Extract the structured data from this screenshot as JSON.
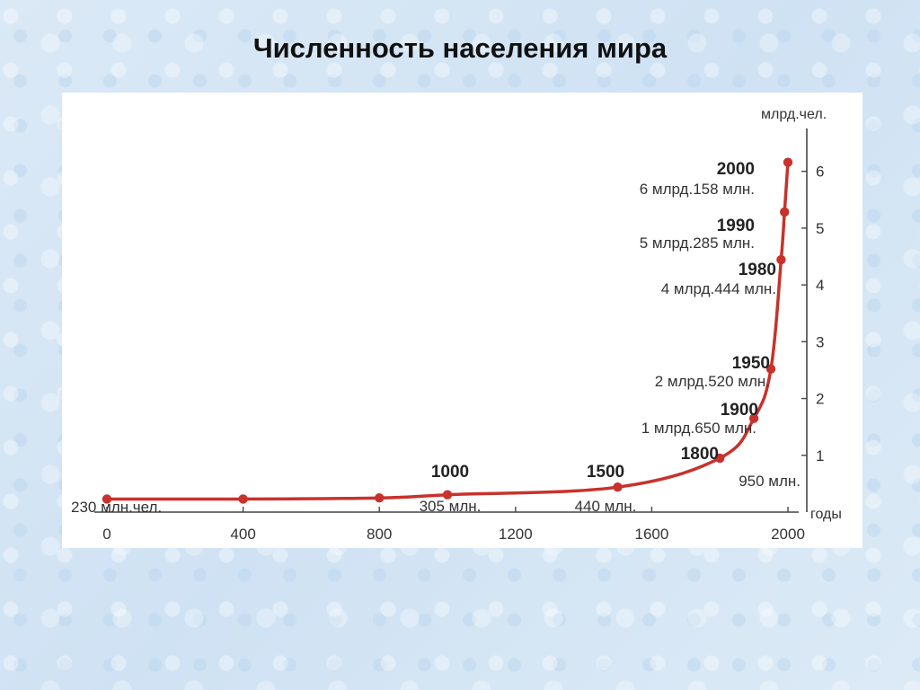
{
  "slide": {
    "title": "Численность населения мира"
  },
  "chart_data": {
    "type": "line",
    "title": "Численность населения мира",
    "xlabel": "годы",
    "ylabel": "млрд.чел.",
    "xlim": [
      0,
      2000
    ],
    "ylim": [
      0,
      6
    ],
    "x_ticks": [
      "0",
      "400",
      "800",
      "1200",
      "1600",
      "2000"
    ],
    "y_ticks": [
      "1",
      "2",
      "3",
      "4",
      "5",
      "6"
    ],
    "line_color": "#c8322c",
    "points": [
      {
        "x": 0,
        "y": 0.23,
        "year": "",
        "value": "230 млн.чел."
      },
      {
        "x": 400,
        "y": 0.23,
        "year": "",
        "value": ""
      },
      {
        "x": 800,
        "y": 0.25,
        "year": "",
        "value": ""
      },
      {
        "x": 1000,
        "y": 0.305,
        "year": "1000",
        "value": "305 млн."
      },
      {
        "x": 1500,
        "y": 0.44,
        "year": "1500",
        "value": "440 млн."
      },
      {
        "x": 1800,
        "y": 0.95,
        "year": "1800",
        "value": "950 млн."
      },
      {
        "x": 1900,
        "y": 1.65,
        "year": "1900",
        "value": "1 млрд.650 млн."
      },
      {
        "x": 1950,
        "y": 2.52,
        "year": "1950",
        "value": "2 млрд.520 млн."
      },
      {
        "x": 1980,
        "y": 4.444,
        "year": "1980",
        "value": "4 млрд.444 млн."
      },
      {
        "x": 1990,
        "y": 5.285,
        "year": "1990",
        "value": "5 млрд.285 млн."
      },
      {
        "x": 2000,
        "y": 6.158,
        "year": "2000",
        "value": "6 млрд.158 млн."
      }
    ]
  }
}
